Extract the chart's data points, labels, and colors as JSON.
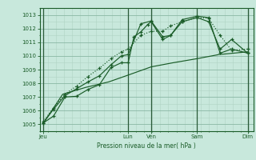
{
  "bg_color": "#c8e8dc",
  "grid_color_major": "#8ab8a4",
  "grid_color_minor": "#b0d4c4",
  "line_color": "#1a5c28",
  "spine_color": "#1a5c28",
  "ylim": [
    1004.5,
    1013.5
  ],
  "yticks": [
    1005,
    1006,
    1007,
    1008,
    1009,
    1010,
    1011,
    1012,
    1013
  ],
  "xlim": [
    0,
    9.3
  ],
  "day_positions": [
    0.15,
    3.85,
    4.85,
    6.85,
    9.05
  ],
  "day_labels": [
    "Jeu",
    "Lun",
    "Ven",
    "Sam",
    "Dim"
  ],
  "day_vlines": [
    0.15,
    3.85,
    4.85,
    6.85,
    9.05
  ],
  "xlabel": "Pression niveau de la mer( hPa )",
  "series_straight_x": [
    0.15,
    1.0,
    2.0,
    3.0,
    3.85,
    4.85,
    5.8,
    6.85,
    7.8,
    9.05
  ],
  "series_straight_y": [
    1005.05,
    1007.2,
    1007.7,
    1008.1,
    1008.6,
    1009.2,
    1009.5,
    1009.8,
    1010.1,
    1010.3
  ],
  "series1_x": [
    0.15,
    0.6,
    1.1,
    1.6,
    2.1,
    2.6,
    3.1,
    3.55,
    3.85,
    4.1,
    4.4,
    4.7,
    4.85,
    5.35,
    5.7,
    6.2,
    6.85,
    7.35,
    7.85,
    8.35,
    9.05
  ],
  "series1_y": [
    1005.1,
    1005.6,
    1007.0,
    1007.05,
    1007.55,
    1007.9,
    1009.15,
    1009.5,
    1009.5,
    1011.4,
    1011.75,
    1012.3,
    1012.5,
    1011.2,
    1011.5,
    1012.5,
    1012.8,
    1012.5,
    1010.5,
    1011.2,
    1010.2
  ],
  "series2_x": [
    0.15,
    0.6,
    1.1,
    1.6,
    2.1,
    2.6,
    3.1,
    3.55,
    3.85,
    4.4,
    4.85,
    5.35,
    5.7,
    6.2,
    6.85,
    7.35,
    7.85,
    8.35,
    9.05
  ],
  "series2_y": [
    1005.1,
    1006.1,
    1007.1,
    1007.6,
    1008.1,
    1008.55,
    1009.35,
    1010.0,
    1010.1,
    1012.35,
    1012.55,
    1011.4,
    1011.5,
    1012.65,
    1012.9,
    1012.8,
    1010.2,
    1010.5,
    1010.2
  ],
  "series3_x": [
    0.15,
    0.6,
    1.1,
    1.6,
    2.1,
    2.6,
    3.1,
    3.55,
    3.85,
    4.4,
    4.85,
    5.35,
    5.7,
    6.2,
    6.85,
    7.35,
    7.85,
    8.35,
    9.05
  ],
  "series3_y": [
    1005.2,
    1006.2,
    1007.2,
    1007.8,
    1008.5,
    1009.1,
    1009.8,
    1010.3,
    1010.5,
    1011.5,
    1011.8,
    1011.8,
    1012.2,
    1012.5,
    1012.8,
    1012.75,
    1011.5,
    1010.4,
    1010.5
  ]
}
